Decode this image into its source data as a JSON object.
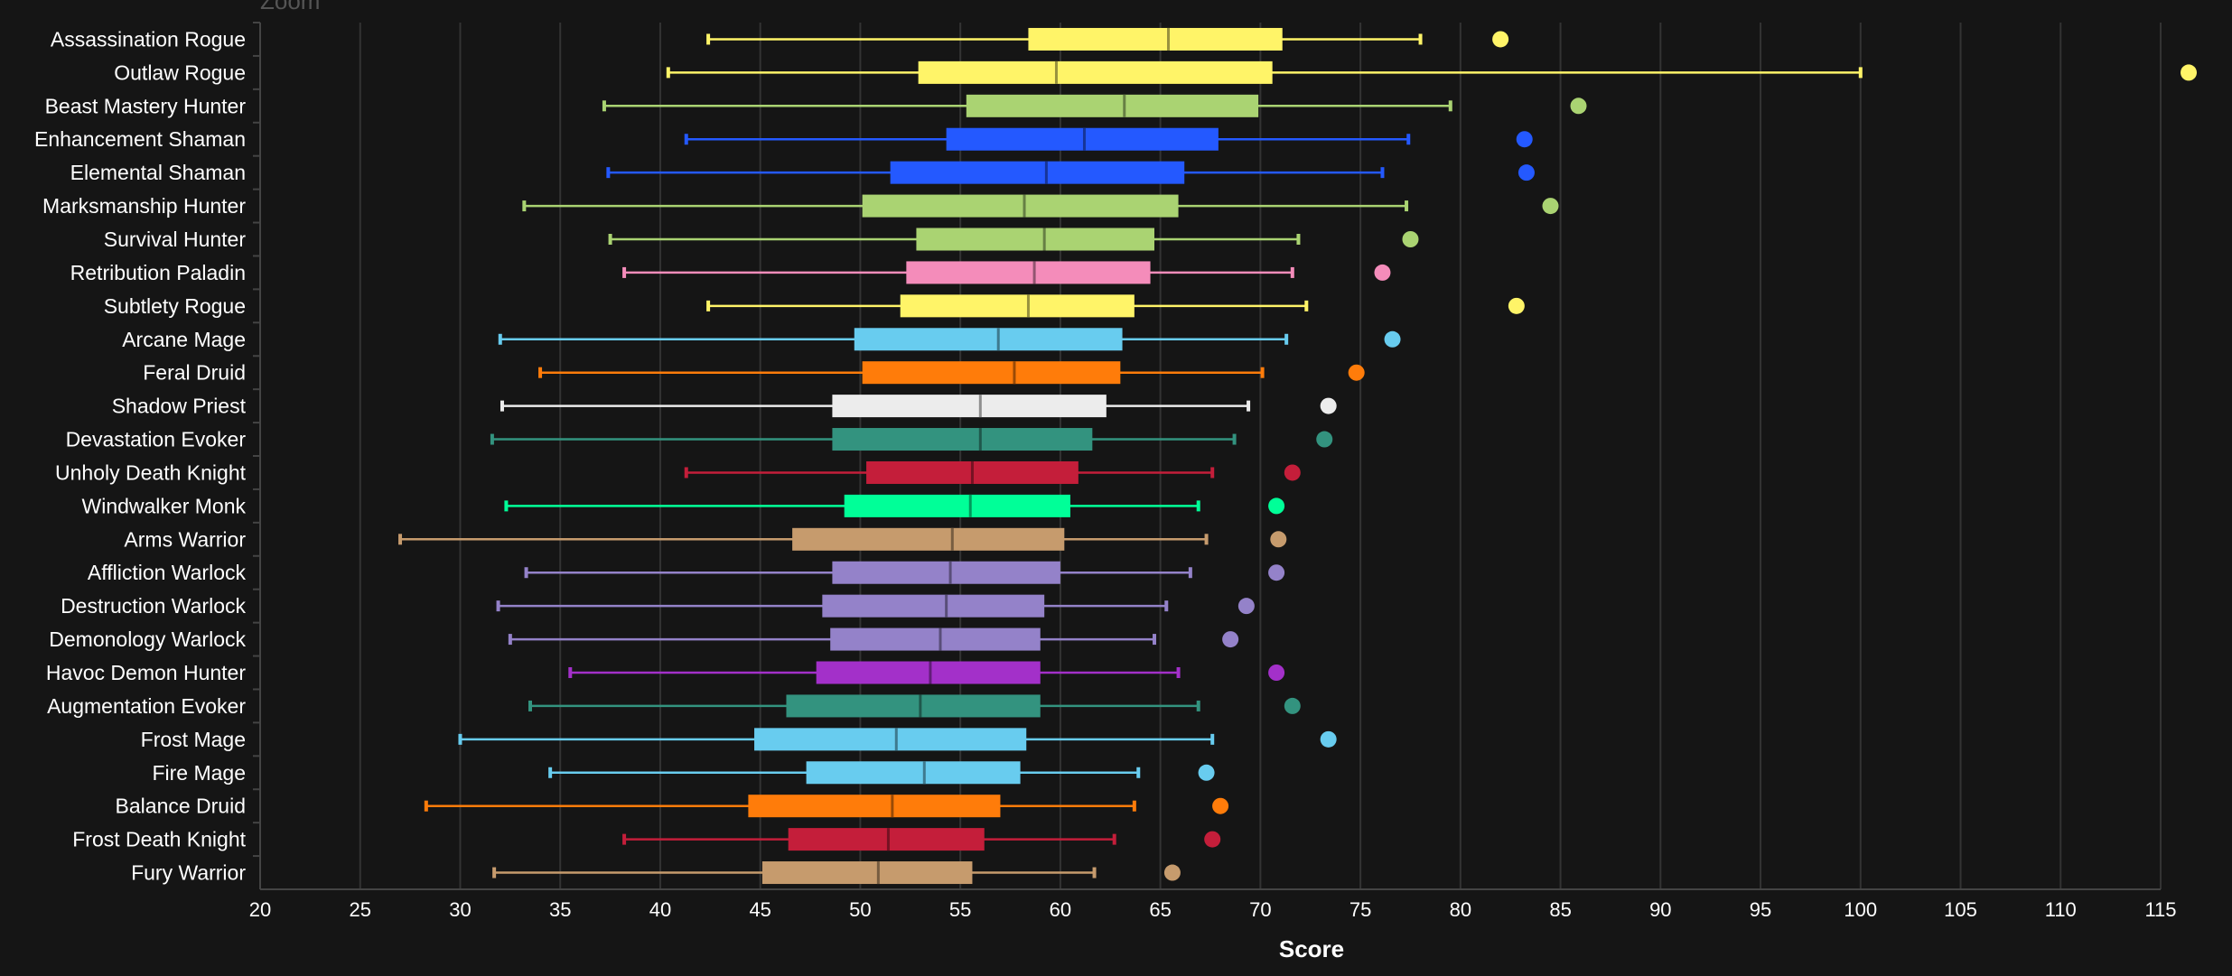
{
  "zoom_label": "Zoom",
  "chart_data": {
    "type": "boxplot",
    "orientation": "horizontal",
    "xlabel": "Score",
    "xlim": [
      20,
      115
    ],
    "xticks": [
      20,
      25,
      30,
      35,
      40,
      45,
      50,
      55,
      60,
      65,
      70,
      75,
      80,
      85,
      90,
      95,
      100,
      105,
      110,
      115
    ],
    "grid": true,
    "series": [
      {
        "name": "Assassination Rogue",
        "color": "#fff468",
        "min": 42.4,
        "q1": 58.4,
        "median": 65.4,
        "q3": 71.1,
        "max": 78.0,
        "outlier": 82.0
      },
      {
        "name": "Outlaw Rogue",
        "color": "#fff468",
        "min": 40.4,
        "q1": 52.9,
        "median": 59.8,
        "q3": 70.6,
        "max": 100.0,
        "outlier": 116.4
      },
      {
        "name": "Beast Mastery Hunter",
        "color": "#aad372",
        "min": 37.2,
        "q1": 55.3,
        "median": 63.2,
        "q3": 69.9,
        "max": 79.5,
        "outlier": 85.9
      },
      {
        "name": "Enhancement Shaman",
        "color": "#2459ff",
        "min": 41.3,
        "q1": 54.3,
        "median": 61.2,
        "q3": 67.9,
        "max": 77.4,
        "outlier": 83.2
      },
      {
        "name": "Elemental Shaman",
        "color": "#2459ff",
        "min": 37.4,
        "q1": 51.5,
        "median": 59.3,
        "q3": 66.2,
        "max": 76.1,
        "outlier": 83.3
      },
      {
        "name": "Marksmanship Hunter",
        "color": "#aad372",
        "min": 33.2,
        "q1": 50.1,
        "median": 58.2,
        "q3": 65.9,
        "max": 77.3,
        "outlier": 84.5
      },
      {
        "name": "Survival Hunter",
        "color": "#aad372",
        "min": 37.5,
        "q1": 52.8,
        "median": 59.2,
        "q3": 64.7,
        "max": 71.9,
        "outlier": 77.5
      },
      {
        "name": "Retribution Paladin",
        "color": "#f48cba",
        "min": 38.2,
        "q1": 52.3,
        "median": 58.7,
        "q3": 64.5,
        "max": 71.6,
        "outlier": 76.1
      },
      {
        "name": "Subtlety Rogue",
        "color": "#fff468",
        "min": 42.4,
        "q1": 52.0,
        "median": 58.4,
        "q3": 63.7,
        "max": 72.3,
        "outlier": 82.8
      },
      {
        "name": "Arcane Mage",
        "color": "#68ccef",
        "min": 32.0,
        "q1": 49.7,
        "median": 56.9,
        "q3": 63.1,
        "max": 71.3,
        "outlier": 76.6
      },
      {
        "name": "Feral Druid",
        "color": "#ff7c0a",
        "min": 34.0,
        "q1": 50.1,
        "median": 57.7,
        "q3": 63.0,
        "max": 70.1,
        "outlier": 74.8
      },
      {
        "name": "Shadow Priest",
        "color": "#ececec",
        "min": 32.1,
        "q1": 48.6,
        "median": 56.0,
        "q3": 62.3,
        "max": 69.4,
        "outlier": 73.4
      },
      {
        "name": "Devastation Evoker",
        "color": "#33937f",
        "min": 31.6,
        "q1": 48.6,
        "median": 56.0,
        "q3": 61.6,
        "max": 68.7,
        "outlier": 73.2
      },
      {
        "name": "Unholy Death Knight",
        "color": "#c41e3a",
        "min": 41.3,
        "q1": 50.3,
        "median": 55.6,
        "q3": 60.9,
        "max": 67.6,
        "outlier": 71.6
      },
      {
        "name": "Windwalker Monk",
        "color": "#00ff98",
        "min": 32.3,
        "q1": 49.2,
        "median": 55.5,
        "q3": 60.5,
        "max": 66.9,
        "outlier": 70.8
      },
      {
        "name": "Arms Warrior",
        "color": "#c69b6d",
        "min": 27.0,
        "q1": 46.6,
        "median": 54.6,
        "q3": 60.2,
        "max": 67.3,
        "outlier": 70.9
      },
      {
        "name": "Affliction Warlock",
        "color": "#9482c9",
        "min": 33.3,
        "q1": 48.6,
        "median": 54.5,
        "q3": 60.0,
        "max": 66.5,
        "outlier": 70.8
      },
      {
        "name": "Destruction Warlock",
        "color": "#9482c9",
        "min": 31.9,
        "q1": 48.1,
        "median": 54.3,
        "q3": 59.2,
        "max": 65.3,
        "outlier": 69.3
      },
      {
        "name": "Demonology Warlock",
        "color": "#9482c9",
        "min": 32.5,
        "q1": 48.5,
        "median": 54.0,
        "q3": 59.0,
        "max": 64.7,
        "outlier": 68.5
      },
      {
        "name": "Havoc Demon Hunter",
        "color": "#a330c9",
        "min": 35.5,
        "q1": 47.8,
        "median": 53.5,
        "q3": 59.0,
        "max": 65.9,
        "outlier": 70.8
      },
      {
        "name": "Augmentation Evoker",
        "color": "#33937f",
        "min": 33.5,
        "q1": 46.3,
        "median": 53.0,
        "q3": 59.0,
        "max": 66.9,
        "outlier": 71.6
      },
      {
        "name": "Frost Mage",
        "color": "#68ccef",
        "min": 30.0,
        "q1": 44.7,
        "median": 51.8,
        "q3": 58.3,
        "max": 67.6,
        "outlier": 73.4
      },
      {
        "name": "Fire Mage",
        "color": "#68ccef",
        "min": 34.5,
        "q1": 47.3,
        "median": 53.2,
        "q3": 58.0,
        "max": 63.9,
        "outlier": 67.3
      },
      {
        "name": "Balance Druid",
        "color": "#ff7c0a",
        "min": 28.3,
        "q1": 44.4,
        "median": 51.6,
        "q3": 57.0,
        "max": 63.7,
        "outlier": 68.0
      },
      {
        "name": "Frost Death Knight",
        "color": "#c41e3a",
        "min": 38.2,
        "q1": 46.4,
        "median": 51.4,
        "q3": 56.2,
        "max": 62.7,
        "outlier": 67.6
      },
      {
        "name": "Fury Warrior",
        "color": "#c69b6d",
        "min": 31.7,
        "q1": 45.1,
        "median": 50.9,
        "q3": 55.6,
        "max": 61.7,
        "outlier": 65.6
      }
    ]
  }
}
